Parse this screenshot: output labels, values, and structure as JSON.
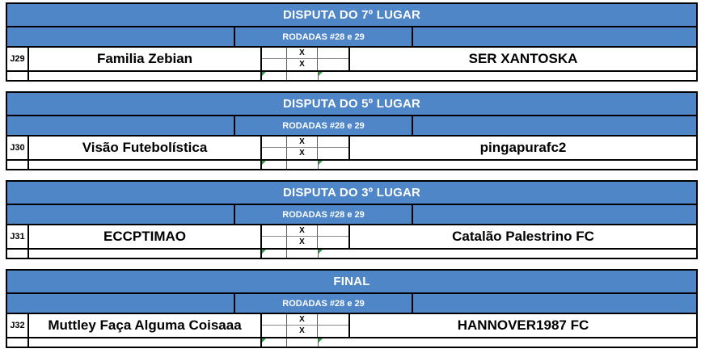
{
  "app": {
    "colors": {
      "header_blue": "#4e86c8",
      "grid_gray": "#8a8a8a",
      "marker_green": "#2f9e44"
    }
  },
  "blocks": [
    {
      "title": "DISPUTA DO 7º LUGAR",
      "rounds_label": "RODADAS #28 e 29",
      "match_id": "J29",
      "home_team": "Familia Zebian",
      "away_team": "SER XANTOSKA",
      "x_top": "X",
      "x_bottom": "X"
    },
    {
      "title": "DISPUTA DO 5º LUGAR",
      "rounds_label": "RODADAS #28 e 29",
      "match_id": "J30",
      "home_team": "Visão Futebolística",
      "away_team": "pingapurafc2",
      "x_top": "X",
      "x_bottom": "X"
    },
    {
      "title": "DISPUTA DO 3º LUGAR",
      "rounds_label": "RODADAS #28 e 29",
      "match_id": "J31",
      "home_team": "ECCPTIMAO",
      "away_team": "Catalão Palestrino FC",
      "x_top": "X",
      "x_bottom": "X"
    },
    {
      "title": "FINAL",
      "rounds_label": "RODADAS #28 e 29",
      "match_id": "J32",
      "home_team": "Muttley Faça Alguma Coisaaa",
      "away_team": "HANNOVER1987 FC",
      "x_top": "X",
      "x_bottom": "X"
    }
  ]
}
